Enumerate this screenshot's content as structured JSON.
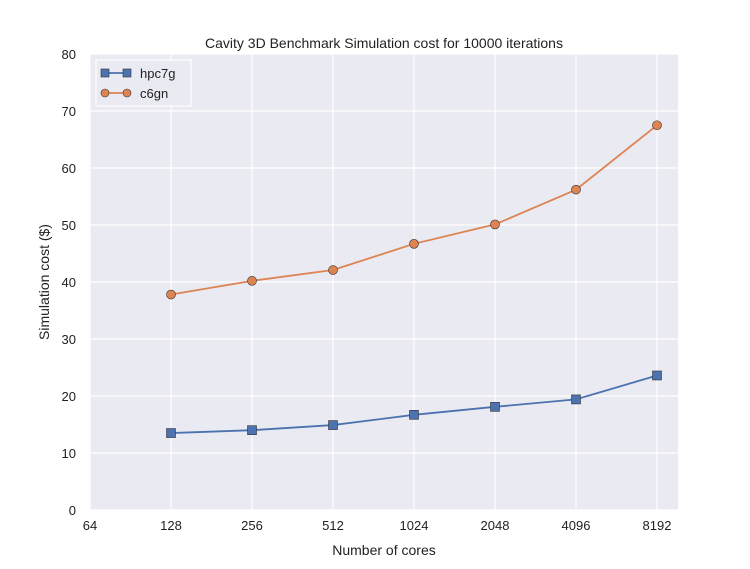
{
  "chart_data": {
    "type": "line",
    "title": "Cavity 3D Benchmark Simulation cost for 10000 iterations",
    "xlabel": "Number of cores",
    "ylabel": "Simulation cost ($)",
    "x_scale": "log2",
    "x_ticks": [
      "64",
      "128",
      "256",
      "512",
      "1024",
      "2048",
      "4096",
      "8192"
    ],
    "x": [
      128,
      256,
      512,
      1024,
      2048,
      4096,
      8192
    ],
    "y_ticks": [
      "0",
      "10",
      "20",
      "30",
      "40",
      "50",
      "60",
      "70",
      "80"
    ],
    "ylim": [
      0,
      80
    ],
    "grid": true,
    "legend_position": "top-left",
    "series": [
      {
        "name": "hpc7g",
        "marker": "square",
        "color": "#4c72b0",
        "values": [
          13.5,
          14.0,
          14.9,
          16.7,
          18.1,
          19.4,
          23.6
        ]
      },
      {
        "name": "c6gn",
        "marker": "circle",
        "color": "#dd8452",
        "values": [
          37.8,
          40.2,
          42.1,
          46.7,
          50.1,
          56.2,
          67.5
        ]
      }
    ]
  }
}
